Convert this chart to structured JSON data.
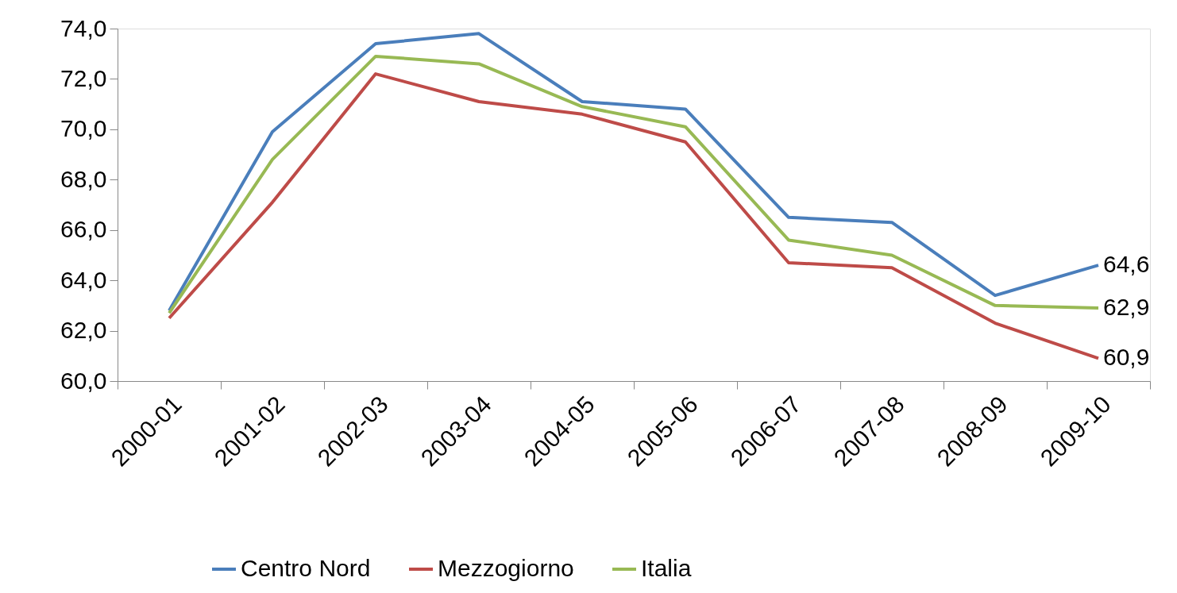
{
  "chart_data": {
    "type": "line",
    "categories": [
      "2000-01",
      "2001-02",
      "2002-03",
      "2003-04",
      "2004-05",
      "2005-06",
      "2006-07",
      "2007-08",
      "2008-09",
      "2009-10"
    ],
    "series": [
      {
        "name": "Centro Nord",
        "color": "#4a7ebb",
        "values": [
          62.8,
          69.9,
          73.4,
          73.8,
          71.1,
          70.8,
          66.5,
          66.3,
          63.4,
          64.6
        ],
        "value_labels": [
          null,
          null,
          null,
          null,
          null,
          null,
          null,
          null,
          null,
          "64,6"
        ]
      },
      {
        "name": "Mezzogiorno",
        "color": "#be4b48",
        "values": [
          62.5,
          67.1,
          72.2,
          71.1,
          70.6,
          69.5,
          64.7,
          64.5,
          62.3,
          60.9
        ],
        "value_labels": [
          null,
          null,
          null,
          null,
          null,
          null,
          null,
          null,
          null,
          "60,9"
        ]
      },
      {
        "name": "Italia",
        "color": "#98b954",
        "values": [
          62.7,
          68.8,
          72.9,
          72.6,
          70.9,
          70.1,
          65.6,
          65.0,
          63.0,
          62.9
        ],
        "value_labels": [
          null,
          null,
          null,
          null,
          null,
          null,
          null,
          null,
          null,
          "62,9"
        ]
      }
    ],
    "ylim": [
      60,
      74
    ],
    "yticks": [
      {
        "value": 60,
        "label": "60,0"
      },
      {
        "value": 62,
        "label": "62,0"
      },
      {
        "value": 64,
        "label": "64,0"
      },
      {
        "value": 66,
        "label": "66,0"
      },
      {
        "value": 68,
        "label": "68,0"
      },
      {
        "value": 70,
        "label": "70,0"
      },
      {
        "value": 72,
        "label": "72,0"
      },
      {
        "value": 74,
        "label": "74,0"
      }
    ],
    "legend": "bottom",
    "grid": false,
    "marker": "none",
    "line_style": "solid"
  }
}
